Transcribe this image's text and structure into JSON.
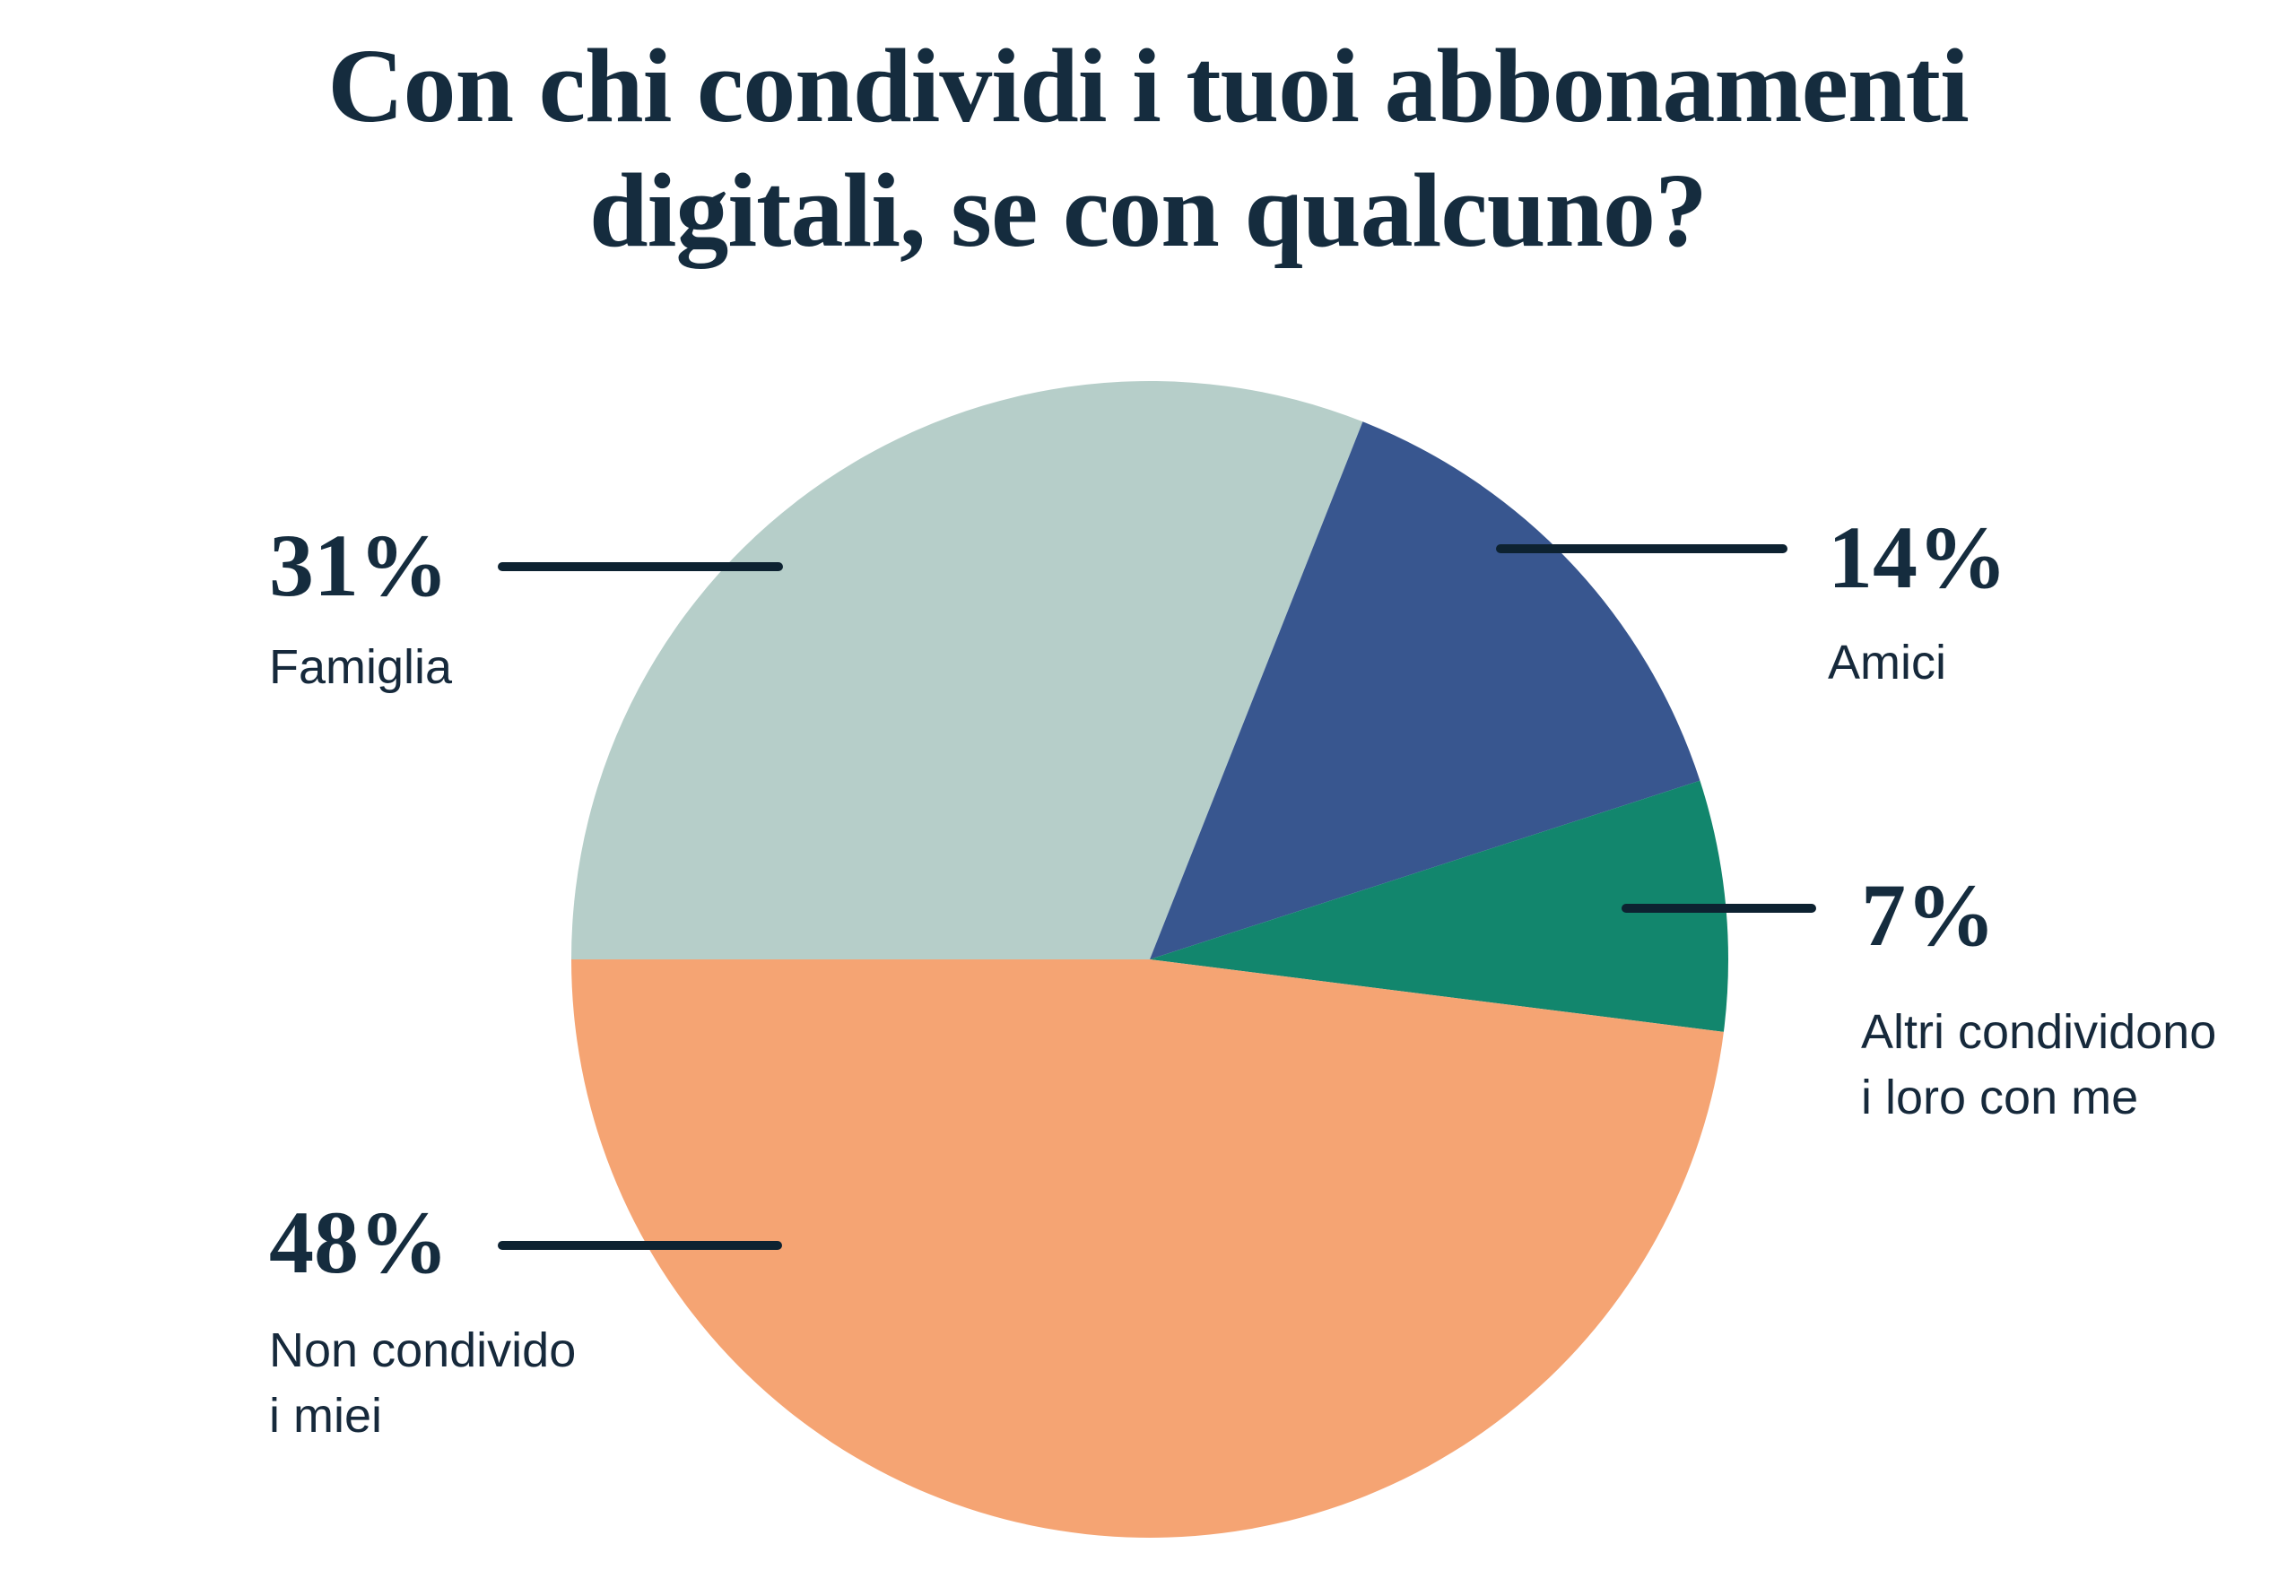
{
  "title": "Con chi condividi i tuoi abbonamenti digitali, se con qualcuno?",
  "title_lines": [
    "Con chi condividi i tuoi abbonamenti",
    "digitali, se con qualcuno?"
  ],
  "colors": {
    "background": "#FFFFFF",
    "text": "#152C3E",
    "callout_line": "#0D2231"
  },
  "chart_data": {
    "type": "pie",
    "title": "Con chi condividi i tuoi abbonamenti digitali, se con qualcuno?",
    "slices": [
      {
        "id": "famiglia",
        "label": "Famiglia",
        "label_lines": [
          "Famiglia"
        ],
        "value": 31,
        "pct_label": "31%",
        "color": "#B6CEC9"
      },
      {
        "id": "amici",
        "label": "Amici",
        "label_lines": [
          "Amici"
        ],
        "value": 14,
        "pct_label": "14%",
        "color": "#38568F"
      },
      {
        "id": "altri",
        "label": "Altri condividono i loro con me",
        "label_lines": [
          "Altri condividono",
          "i loro con me"
        ],
        "value": 7,
        "pct_label": "7%",
        "color": "#12866D"
      },
      {
        "id": "non-condivido",
        "label": "Non condivido i miei",
        "label_lines": [
          "Non condivido",
          "i miei"
        ],
        "value": 48,
        "pct_label": "48%",
        "color": "#F5A473"
      }
    ],
    "start_angle_deg": 270,
    "direction": "clockwise",
    "legend_position": "callout-labels",
    "grid": false
  }
}
